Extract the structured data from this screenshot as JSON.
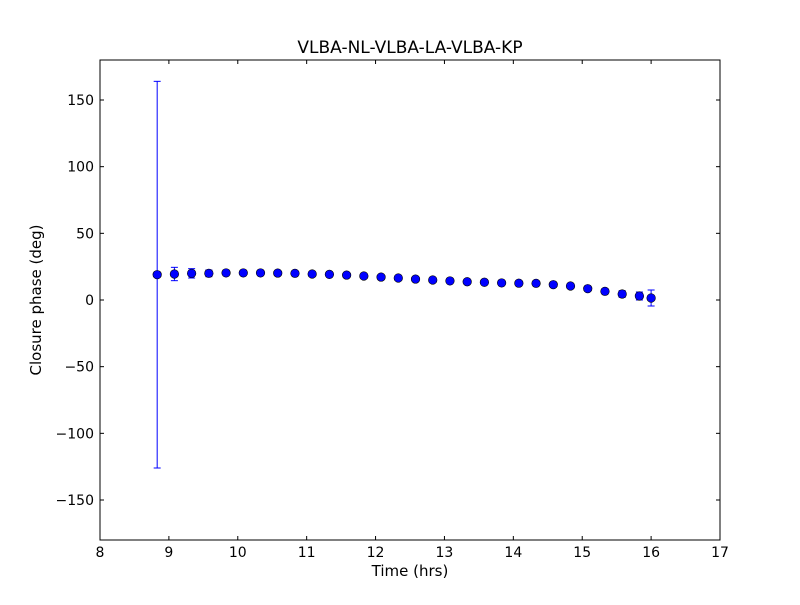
{
  "chart_data": {
    "type": "scatter",
    "title": "VLBA-NL-VLBA-LA-VLBA-KP",
    "xlabel": "Time (hrs)",
    "ylabel": "Closure phase (deg)",
    "xlim": [
      8,
      17
    ],
    "ylim": [
      -180,
      180
    ],
    "xticks": [
      8,
      9,
      10,
      11,
      12,
      13,
      14,
      15,
      16,
      17
    ],
    "xtick_labels": [
      "8",
      "9",
      "10",
      "11",
      "12",
      "13",
      "14",
      "15",
      "16",
      "17"
    ],
    "yticks": [
      -150,
      -100,
      -50,
      0,
      50,
      100,
      150
    ],
    "ytick_labels": [
      "−150",
      "−100",
      "−50",
      "0",
      "50",
      "100",
      "150"
    ],
    "grid": false,
    "color": "#0000ff",
    "points": [
      {
        "x": 8.83,
        "y": 19,
        "err": 145
      },
      {
        "x": 9.08,
        "y": 19.5,
        "err": 5
      },
      {
        "x": 9.33,
        "y": 20,
        "err": 3.5
      },
      {
        "x": 9.58,
        "y": 20,
        "err": 2.5
      },
      {
        "x": 9.83,
        "y": 20.3,
        "err": 2
      },
      {
        "x": 10.08,
        "y": 20.3,
        "err": 1.5
      },
      {
        "x": 10.33,
        "y": 20.3,
        "err": 1
      },
      {
        "x": 10.58,
        "y": 20.2,
        "err": 1
      },
      {
        "x": 10.83,
        "y": 20,
        "err": 1
      },
      {
        "x": 11.08,
        "y": 19.5,
        "err": 1
      },
      {
        "x": 11.33,
        "y": 19.2,
        "err": 1
      },
      {
        "x": 11.58,
        "y": 18.7,
        "err": 1
      },
      {
        "x": 11.83,
        "y": 18,
        "err": 1
      },
      {
        "x": 12.08,
        "y": 17.2,
        "err": 1
      },
      {
        "x": 12.33,
        "y": 16.5,
        "err": 1
      },
      {
        "x": 12.58,
        "y": 15.7,
        "err": 1
      },
      {
        "x": 12.83,
        "y": 15,
        "err": 1
      },
      {
        "x": 13.08,
        "y": 14.3,
        "err": 1
      },
      {
        "x": 13.33,
        "y": 13.7,
        "err": 1
      },
      {
        "x": 13.58,
        "y": 13.3,
        "err": 1
      },
      {
        "x": 13.83,
        "y": 12.8,
        "err": 1
      },
      {
        "x": 14.08,
        "y": 12.6,
        "err": 1
      },
      {
        "x": 14.33,
        "y": 12.5,
        "err": 1
      },
      {
        "x": 14.58,
        "y": 11.5,
        "err": 1
      },
      {
        "x": 14.83,
        "y": 10.5,
        "err": 1.2
      },
      {
        "x": 15.08,
        "y": 8.5,
        "err": 1.5
      },
      {
        "x": 15.33,
        "y": 6.5,
        "err": 2
      },
      {
        "x": 15.58,
        "y": 4.5,
        "err": 2.5
      },
      {
        "x": 15.83,
        "y": 3,
        "err": 3
      },
      {
        "x": 16.0,
        "y": 1.5,
        "err": 6
      }
    ]
  }
}
